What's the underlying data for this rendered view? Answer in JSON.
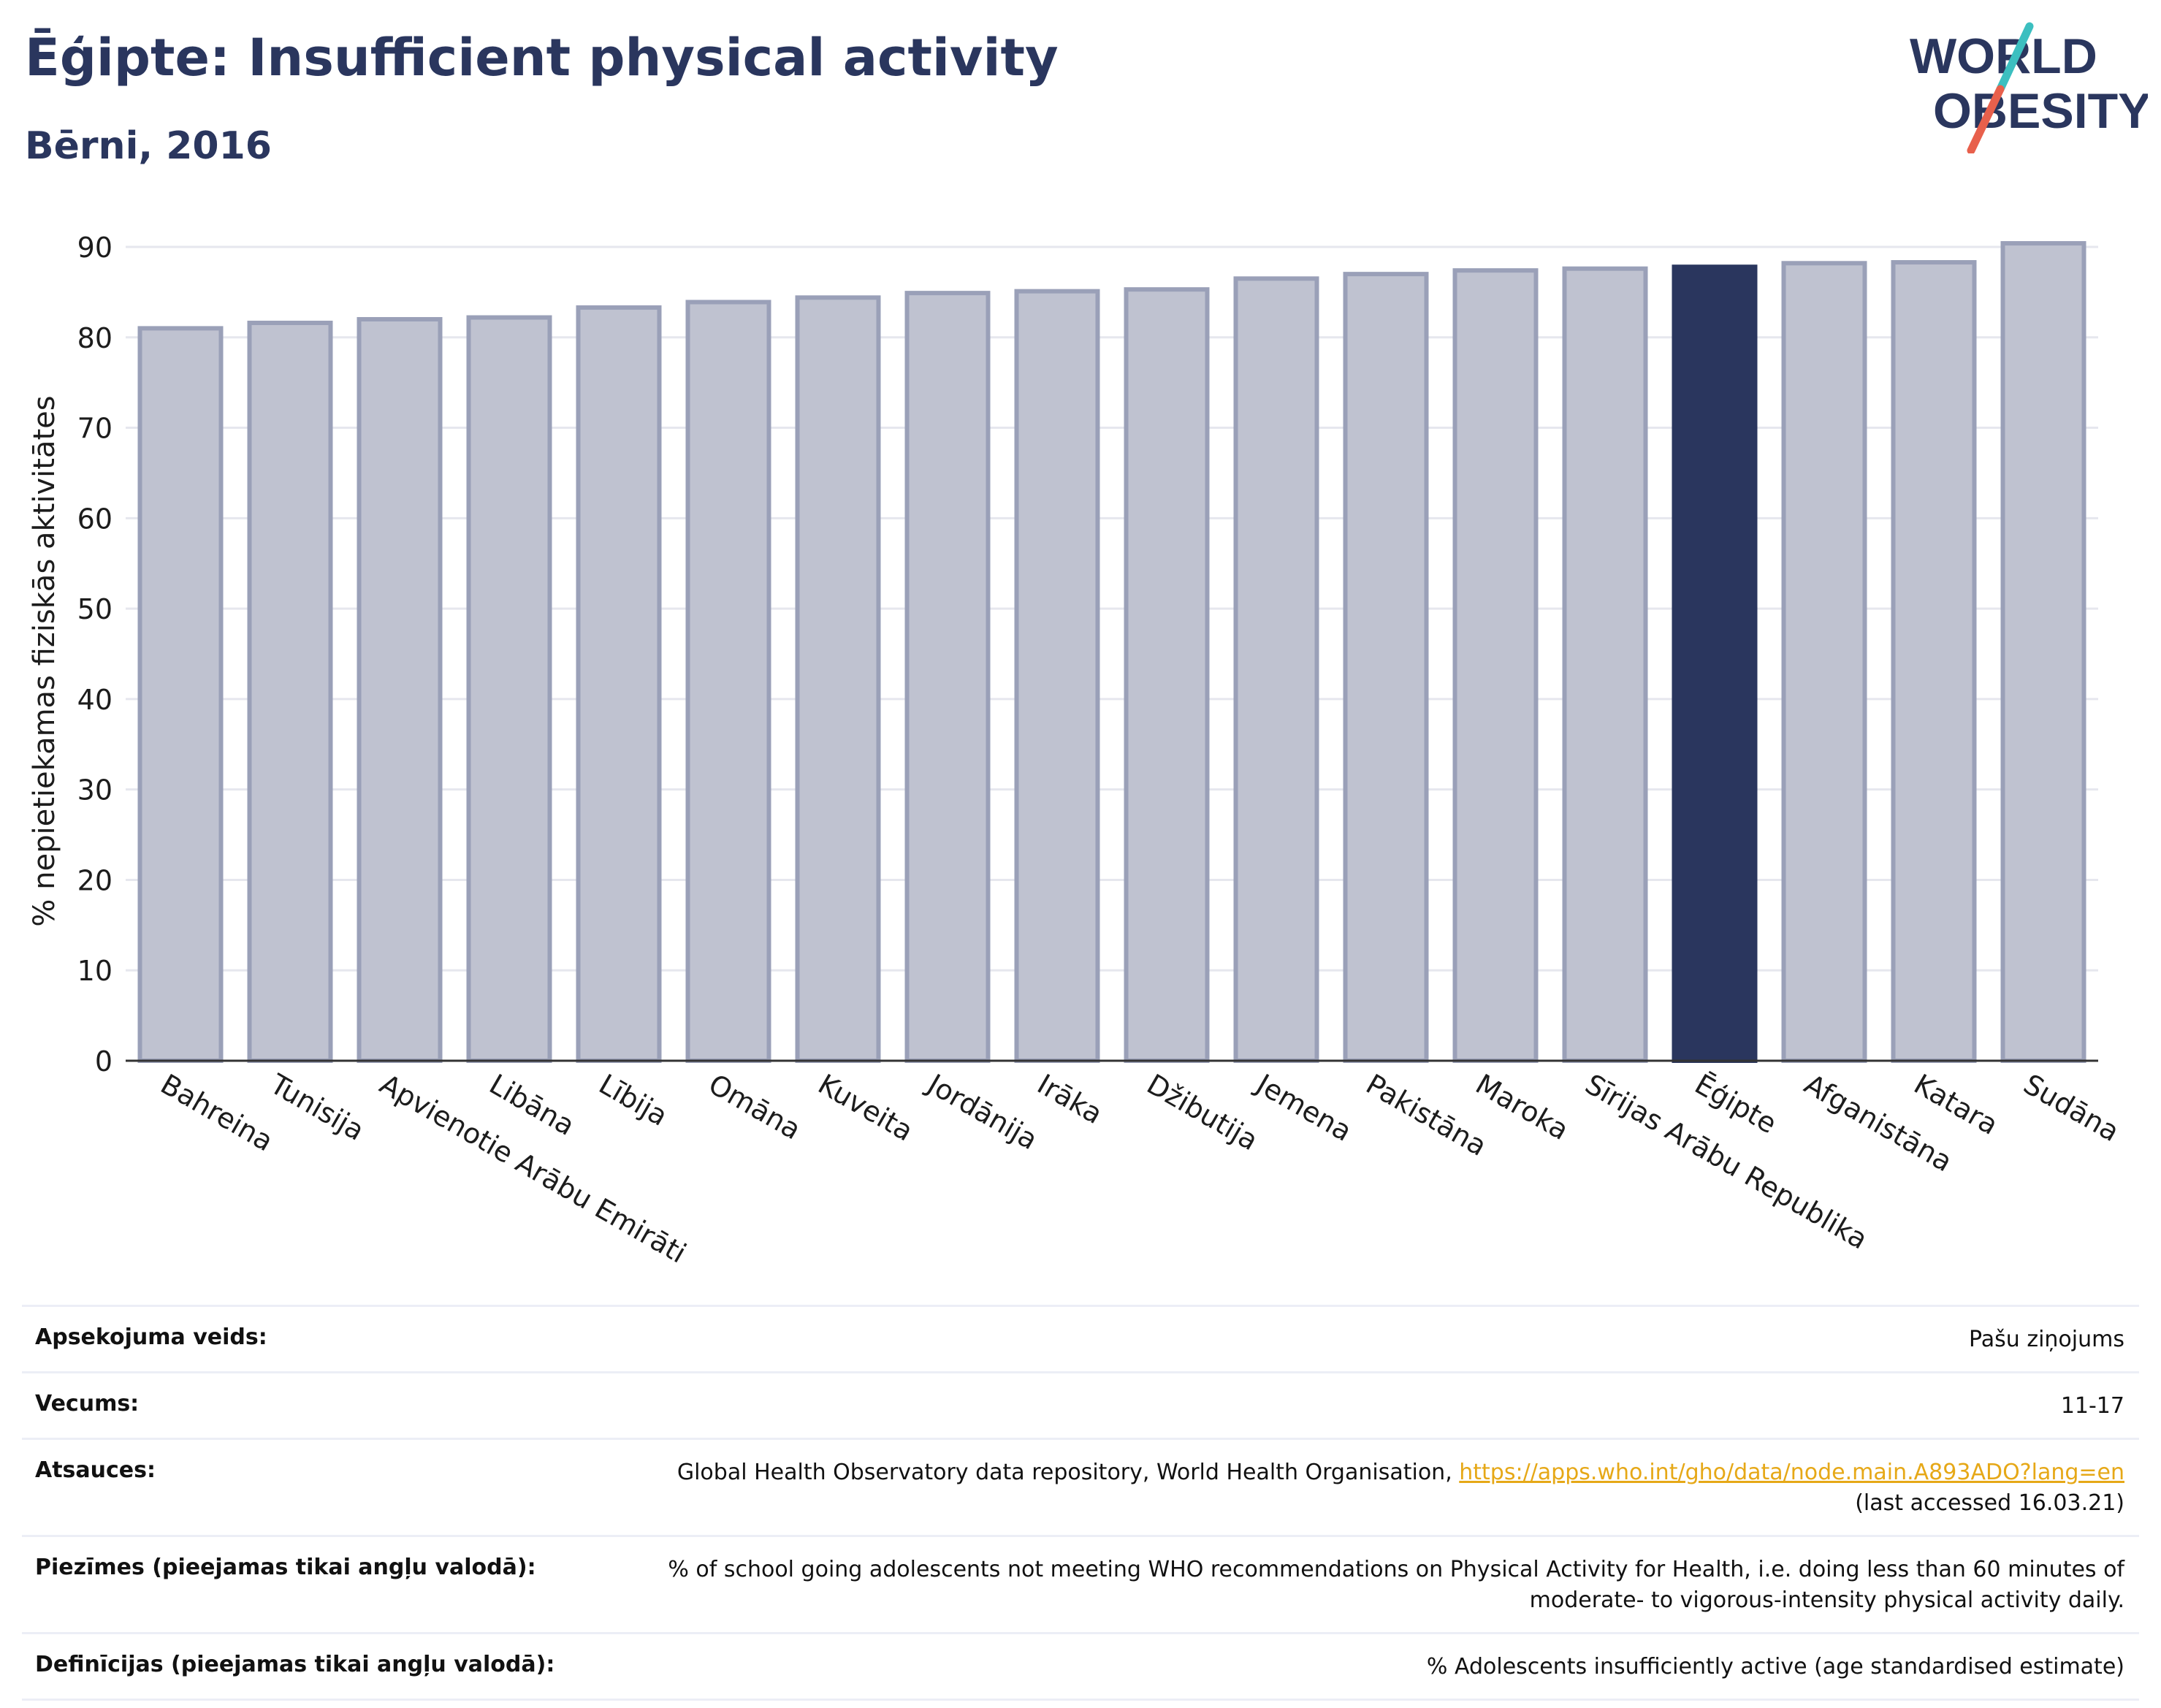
{
  "header": {
    "title": "Ēģipte: Insufficient physical activity",
    "subtitle": "Bērni, 2016"
  },
  "logo": {
    "line1": "WORLD",
    "line2": "OBESITY",
    "text_color": "#2a365e",
    "slash_colors": [
      "#3cbfc0",
      "#e8604c"
    ]
  },
  "colors": {
    "bar_default": "#bfc2d0",
    "bar_stroke": "#9aa0b8",
    "bar_highlight": "#2a365e",
    "grid": "#e6e7ee",
    "axis": "#333333"
  },
  "chart_data": {
    "type": "bar",
    "title": "",
    "xlabel": "",
    "ylabel": "% nepietiekamas fiziskās aktivitātes",
    "ylim": [
      0,
      90
    ],
    "yticks": [
      0,
      10,
      20,
      30,
      40,
      50,
      60,
      70,
      80,
      90
    ],
    "grid": true,
    "highlight_category": "Ēģipte",
    "categories": [
      "Bahreina",
      "Tunisija",
      "Apvienotie Arābu Emirāti",
      "Libāna",
      "Lībija",
      "Omāna",
      "Kuveita",
      "Jordānija",
      "Irāka",
      "Džibutija",
      "Jemena",
      "Pakistāna",
      "Maroka",
      "Sīrijas Arābu Republika",
      "Ēģipte",
      "Afganistāna",
      "Katara",
      "Sudāna"
    ],
    "values": [
      81.0,
      81.6,
      82.0,
      82.2,
      83.3,
      83.9,
      84.4,
      84.9,
      85.1,
      85.3,
      86.5,
      87.0,
      87.4,
      87.6,
      87.8,
      88.2,
      88.3,
      90.4
    ]
  },
  "info": [
    {
      "label": "Apsekojuma veids:",
      "value": "Pašu ziņojums"
    },
    {
      "label": "Vecums:",
      "value": "11-17"
    },
    {
      "label": "Atsauces:",
      "value": "Global Health Observatory data repository, World Health Organisation, ",
      "link": "https://apps.who.int/gho/data/node.main.A893ADO?lang=en",
      "value2": "(last accessed 16.03.21)"
    },
    {
      "label": "Piezīmes (pieejamas tikai angļu valodā):",
      "value": "% of school going adolescents not meeting WHO recommendations on Physical Activity for Health, i.e. doing less than 60 minutes of moderate- to vigorous-intensity physical activity daily."
    },
    {
      "label": "Definīcijas (pieejamas tikai angļu valodā):",
      "value": "% Adolescents insufficiently active (age standardised estimate)"
    }
  ]
}
